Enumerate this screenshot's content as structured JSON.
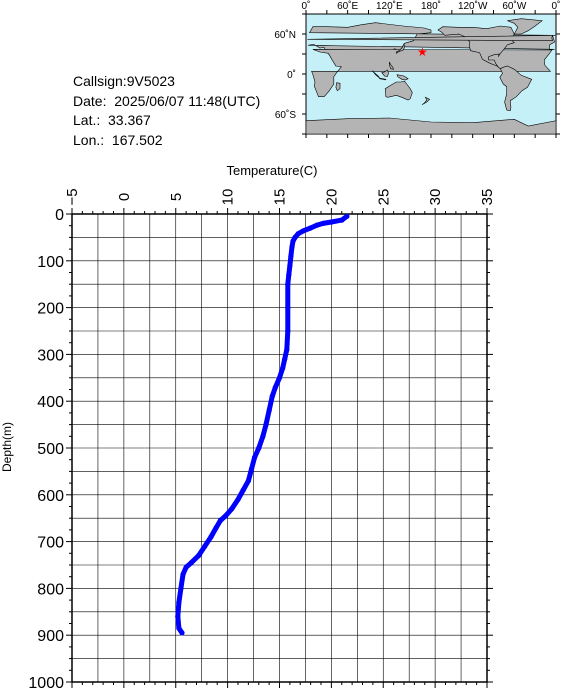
{
  "station": {
    "callsign": "Callsign:9V5023",
    "date": "Date:  2025/06/07 11:48(UTC)",
    "lat": "Lat.:  33.367",
    "lon": "Lon.:  167.502"
  },
  "map": {
    "lon_labels": [
      "0˚",
      "60˚E",
      "120˚E",
      "180˚",
      "120˚W",
      "60˚W",
      "0˚"
    ],
    "lat_labels": [
      "60˚N",
      "0˚",
      "60˚S"
    ],
    "marker": {
      "lon": 167.502,
      "lat": 33.367,
      "symbol": "★"
    },
    "colors": {
      "ocean": "#c6f0f8",
      "land": "#b4b4b4",
      "coast": "#000000",
      "marker": "#ff0000"
    }
  },
  "chart_data": {
    "type": "line",
    "xlabel": "Temperature(C)",
    "ylabel": "Depth(m)",
    "xlim": [
      -5,
      35
    ],
    "ylim": [
      0,
      1000
    ],
    "y_inverted": true,
    "x_ticks": [
      "-5",
      "0",
      "5",
      "10",
      "15",
      "20",
      "25",
      "30",
      "35"
    ],
    "y_ticks": [
      "0",
      "100",
      "200",
      "300",
      "400",
      "500",
      "600",
      "700",
      "800",
      "900",
      "1000"
    ],
    "grid": true,
    "series": [
      {
        "color": "#0000ff",
        "points": [
          [
            21.5,
            5
          ],
          [
            21.0,
            13
          ],
          [
            20.0,
            17
          ],
          [
            19.2,
            20
          ],
          [
            18.6,
            24
          ],
          [
            18.0,
            30
          ],
          [
            17.3,
            36
          ],
          [
            16.8,
            42
          ],
          [
            16.5,
            50
          ],
          [
            16.3,
            58
          ],
          [
            16.2,
            70
          ],
          [
            16.1,
            90
          ],
          [
            16.0,
            110
          ],
          [
            15.9,
            130
          ],
          [
            15.8,
            150
          ],
          [
            15.8,
            200
          ],
          [
            15.8,
            250
          ],
          [
            15.7,
            290
          ],
          [
            15.5,
            310
          ],
          [
            15.3,
            330
          ],
          [
            15.0,
            350
          ],
          [
            14.6,
            370
          ],
          [
            14.3,
            390
          ],
          [
            14.0,
            420
          ],
          [
            13.7,
            450
          ],
          [
            13.4,
            475
          ],
          [
            13.0,
            500
          ],
          [
            12.6,
            520
          ],
          [
            12.3,
            545
          ],
          [
            12.0,
            570
          ],
          [
            11.5,
            590
          ],
          [
            11.0,
            610
          ],
          [
            10.4,
            630
          ],
          [
            9.8,
            645
          ],
          [
            9.3,
            655
          ],
          [
            8.9,
            670
          ],
          [
            8.4,
            690
          ],
          [
            7.8,
            710
          ],
          [
            7.2,
            730
          ],
          [
            6.5,
            745
          ],
          [
            6.0,
            755
          ],
          [
            5.7,
            770
          ],
          [
            5.5,
            800
          ],
          [
            5.3,
            830
          ],
          [
            5.2,
            860
          ],
          [
            5.3,
            885
          ],
          [
            5.6,
            895
          ]
        ]
      }
    ]
  }
}
